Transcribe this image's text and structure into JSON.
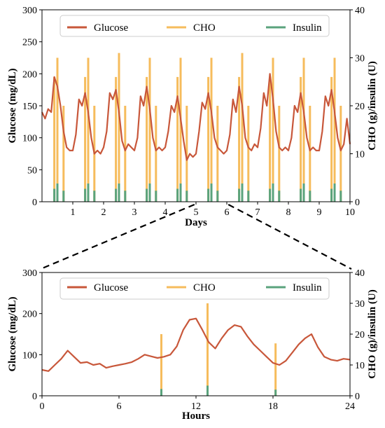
{
  "colors": {
    "glucose": "#c8573a",
    "cho": "#f6bc5c",
    "insulin": "#5aa37c"
  },
  "chart_data": [
    {
      "type": "line",
      "xlabel": "Days",
      "ylabel": "Glucose (mg/dL)",
      "y2label": "CHO (g)/insulin (U)",
      "xlim": [
        0,
        10
      ],
      "ylim": [
        0,
        300
      ],
      "y2lim": [
        0,
        40
      ],
      "xticks": [
        "1",
        "2",
        "3",
        "4",
        "5",
        "6",
        "7",
        "8",
        "9",
        "10"
      ],
      "yticks": [
        "0",
        "50",
        "100",
        "150",
        "200",
        "250",
        "300"
      ],
      "y2ticks": [
        "0",
        "10",
        "20",
        "30",
        "40"
      ],
      "legend": {
        "placement": "top-center",
        "entries": [
          "Glucose",
          "CHO",
          "Insulin"
        ]
      },
      "series": [
        {
          "name": "Glucose",
          "axis": "left",
          "x": [
            0.0,
            0.1,
            0.2,
            0.3,
            0.4,
            0.5,
            0.6,
            0.7,
            0.8,
            0.9,
            1.0,
            1.1,
            1.2,
            1.3,
            1.4,
            1.5,
            1.6,
            1.7,
            1.8,
            1.9,
            2.0,
            2.1,
            2.2,
            2.3,
            2.4,
            2.5,
            2.6,
            2.7,
            2.8,
            2.9,
            3.0,
            3.1,
            3.2,
            3.3,
            3.4,
            3.5,
            3.6,
            3.7,
            3.8,
            3.9,
            4.0,
            4.1,
            4.2,
            4.3,
            4.4,
            4.5,
            4.6,
            4.7,
            4.8,
            4.9,
            5.0,
            5.1,
            5.2,
            5.3,
            5.4,
            5.5,
            5.6,
            5.7,
            5.8,
            5.9,
            6.0,
            6.1,
            6.2,
            6.3,
            6.4,
            6.5,
            6.6,
            6.7,
            6.8,
            6.9,
            7.0,
            7.1,
            7.2,
            7.3,
            7.4,
            7.5,
            7.6,
            7.7,
            7.8,
            7.9,
            8.0,
            8.1,
            8.2,
            8.3,
            8.4,
            8.5,
            8.6,
            8.7,
            8.8,
            8.9,
            9.0,
            9.1,
            9.2,
            9.3,
            9.4,
            9.5,
            9.6,
            9.7,
            9.8,
            9.9,
            10.0
          ],
          "y": [
            140,
            130,
            145,
            140,
            195,
            180,
            150,
            110,
            85,
            80,
            80,
            105,
            160,
            150,
            170,
            140,
            100,
            75,
            80,
            75,
            85,
            110,
            170,
            160,
            175,
            140,
            95,
            80,
            90,
            85,
            80,
            100,
            165,
            150,
            180,
            145,
            100,
            80,
            85,
            80,
            85,
            110,
            150,
            140,
            165,
            130,
            95,
            65,
            75,
            70,
            75,
            110,
            155,
            145,
            170,
            140,
            100,
            85,
            80,
            75,
            80,
            105,
            160,
            140,
            180,
            150,
            100,
            85,
            80,
            90,
            85,
            115,
            170,
            150,
            200,
            160,
            110,
            85,
            80,
            85,
            80,
            100,
            150,
            140,
            170,
            140,
            100,
            80,
            85,
            80,
            80,
            110,
            165,
            150,
            175,
            140,
            100,
            80,
            90,
            130,
            90
          ]
        },
        {
          "name": "CHO",
          "axis": "right",
          "type": "bar",
          "x": [
            0.4,
            0.5,
            0.7,
            1.4,
            1.5,
            1.7,
            2.4,
            2.5,
            2.7,
            3.4,
            3.5,
            3.7,
            4.4,
            4.5,
            4.7,
            5.4,
            5.5,
            5.7,
            6.4,
            6.5,
            6.7,
            7.4,
            7.5,
            7.7,
            8.4,
            8.5,
            8.7,
            9.4,
            9.5,
            9.7
          ],
          "y": [
            26,
            30,
            20,
            26,
            30,
            20,
            26,
            31,
            20,
            26,
            30,
            20,
            26,
            30,
            20,
            26,
            30,
            20,
            26,
            31,
            20,
            26,
            30,
            20,
            26,
            30,
            20,
            26,
            30,
            20
          ]
        },
        {
          "name": "Insulin",
          "axis": "right",
          "type": "bar",
          "x": [
            0.4,
            0.5,
            0.7,
            1.4,
            1.5,
            1.7,
            2.4,
            2.5,
            2.7,
            3.4,
            3.5,
            3.7,
            4.4,
            4.5,
            4.7,
            5.4,
            5.5,
            5.7,
            6.4,
            6.5,
            6.7,
            7.4,
            7.5,
            7.7,
            8.4,
            8.5,
            8.7,
            9.4,
            9.5,
            9.7
          ],
          "y": [
            2.7,
            3.8,
            2.3,
            2.7,
            3.8,
            2.3,
            2.7,
            3.8,
            2.3,
            2.7,
            3.8,
            2.3,
            2.7,
            3.8,
            2.3,
            2.7,
            3.8,
            2.3,
            2.7,
            3.8,
            2.3,
            2.7,
            3.8,
            2.3,
            2.7,
            3.8,
            2.3,
            2.7,
            3.8,
            2.3
          ]
        }
      ]
    },
    {
      "type": "line",
      "xlabel": "Hours",
      "ylabel": "Glucose (mg/dL)",
      "y2label": "CHO (g)/insulin (U)",
      "xlim": [
        0,
        24
      ],
      "ylim": [
        0,
        300
      ],
      "y2lim": [
        0,
        40
      ],
      "xticks": [
        "0",
        "6",
        "12",
        "18",
        "24"
      ],
      "yticks": [
        "0",
        "100",
        "200",
        "300"
      ],
      "y2ticks": [
        "0",
        "10",
        "20",
        "30",
        "40"
      ],
      "legend": {
        "placement": "top-center",
        "entries": [
          "Glucose",
          "CHO",
          "Insulin"
        ]
      },
      "series": [
        {
          "name": "Glucose",
          "axis": "left",
          "x": [
            0.0,
            0.5,
            1.0,
            1.5,
            2.0,
            2.5,
            3.0,
            3.5,
            4.0,
            4.5,
            5.0,
            5.5,
            6.0,
            6.5,
            7.0,
            7.5,
            8.0,
            8.5,
            9.0,
            9.5,
            10.0,
            10.5,
            11.0,
            11.5,
            12.0,
            12.5,
            13.0,
            13.5,
            14.0,
            14.5,
            15.0,
            15.5,
            16.0,
            16.5,
            17.0,
            17.5,
            18.0,
            18.5,
            19.0,
            19.5,
            20.0,
            20.5,
            21.0,
            21.5,
            22.0,
            22.5,
            23.0,
            23.5,
            24.0
          ],
          "y": [
            63,
            60,
            75,
            90,
            110,
            95,
            80,
            82,
            75,
            78,
            68,
            72,
            75,
            78,
            82,
            90,
            100,
            96,
            92,
            95,
            100,
            120,
            160,
            185,
            188,
            160,
            130,
            115,
            140,
            160,
            172,
            168,
            145,
            125,
            110,
            95,
            80,
            75,
            85,
            105,
            125,
            140,
            150,
            118,
            95,
            88,
            85,
            90,
            88
          ]
        },
        {
          "name": "CHO",
          "axis": "right",
          "type": "bar",
          "x": [
            9.3,
            12.9,
            18.2
          ],
          "y": [
            20,
            30,
            17
          ]
        },
        {
          "name": "Insulin",
          "axis": "right",
          "type": "bar",
          "x": [
            9.3,
            12.9,
            18.2
          ],
          "y": [
            2.2,
            3.3,
            2.0
          ]
        }
      ]
    }
  ]
}
